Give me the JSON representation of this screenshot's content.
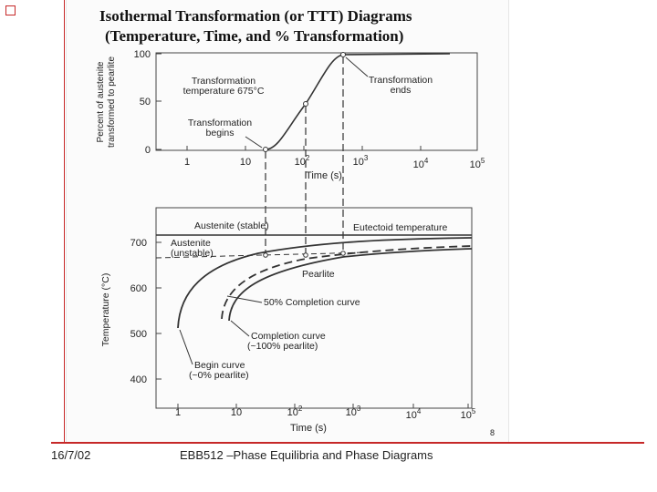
{
  "title": {
    "line1": "Isothermal Transformation (or TTT) Diagrams",
    "line2": "(Temperature, Time, and % Transformation)"
  },
  "top_plot": {
    "ylabel_line1": "Percent of austenite",
    "ylabel_line2": "transformed to pearlite",
    "xlabel": "Time (s)",
    "y_ticks": [
      "0",
      "50",
      "100"
    ],
    "x_ticks": [
      {
        "base": "1",
        "exp": ""
      },
      {
        "base": "10",
        "exp": ""
      },
      {
        "base": "10",
        "exp": "2"
      },
      {
        "base": "10",
        "exp": "3"
      },
      {
        "base": "10",
        "exp": "4"
      },
      {
        "base": "10",
        "exp": "5"
      }
    ],
    "annotations": {
      "transformation_temp_line1": "Transformation",
      "transformation_temp_line2": "temperature 675°C",
      "ends_line1": "Transformation",
      "ends_line2": "ends",
      "begins_line1": "Transformation",
      "begins_line2": "begins"
    }
  },
  "bottom_plot": {
    "ylabel": "Temperature (°C)",
    "xlabel": "Time (s)",
    "y_ticks": [
      "400",
      "500",
      "600",
      "700"
    ],
    "x_ticks": [
      {
        "base": "1",
        "exp": ""
      },
      {
        "base": "10",
        "exp": ""
      },
      {
        "base": "10",
        "exp": "2"
      },
      {
        "base": "10",
        "exp": "3"
      },
      {
        "base": "10",
        "exp": "4"
      },
      {
        "base": "10",
        "exp": "5"
      }
    ],
    "labels": {
      "austenite_stable": "Austenite (stable)",
      "eutectoid": "Eutectoid temperature",
      "austenite_unstable_line1": "Austenite",
      "austenite_unstable_line2": "(unstable)",
      "pearlite": "Pearlite",
      "fifty_percent": "50% Completion curve",
      "completion_line1": "Completion curve",
      "completion_line2": "(~100% pearlite)",
      "begin_line1": "Begin curve",
      "begin_line2": "(~0% pearlite)"
    }
  },
  "page_number": "8",
  "footer": {
    "date": "16/7/02",
    "course": "EBB512 –Phase Equilibria and Phase Diagrams"
  },
  "colors": {
    "accent": "#c62828",
    "ink": "#222222"
  }
}
